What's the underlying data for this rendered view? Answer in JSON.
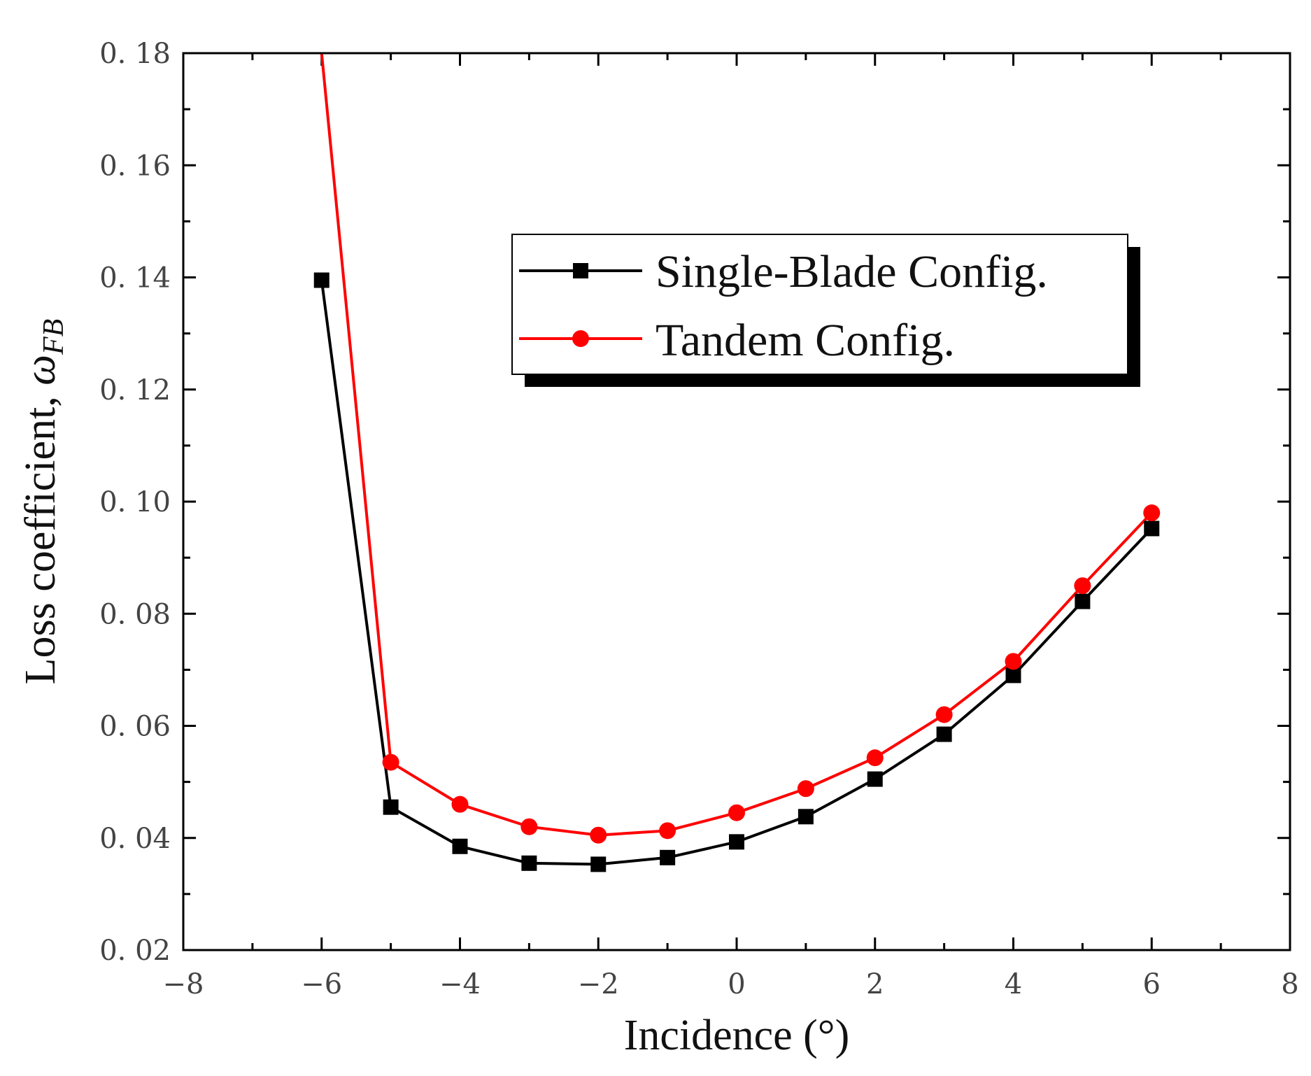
{
  "chart_data": {
    "type": "line",
    "title": "",
    "xlabel": "Incidence (°)",
    "ylabel": "Loss coefficient, ",
    "ylabel_symbol": "ω",
    "ylabel_subscript": "FB",
    "xlim": [
      -8,
      8
    ],
    "ylim": [
      0.02,
      0.18
    ],
    "x_ticks": [
      -8,
      -6,
      -4,
      -2,
      0,
      2,
      4,
      6,
      8
    ],
    "x_tick_labels": [
      "−8",
      "−6",
      "−4",
      "−2",
      "0",
      "2",
      "4",
      "6",
      "8"
    ],
    "y_ticks": [
      0.02,
      0.04,
      0.06,
      0.08,
      0.1,
      0.12,
      0.14,
      0.16,
      0.18
    ],
    "y_tick_labels": [
      "0. 02",
      "0. 04",
      "0. 06",
      "0. 08",
      "0. 10",
      "0. 12",
      "0. 14",
      "0. 16",
      "0. 18"
    ],
    "grid": false,
    "legend_position": "upper-right",
    "x": [
      -6,
      -5,
      -4,
      -3,
      -2,
      -1,
      0,
      1,
      2,
      3,
      4,
      5,
      6
    ],
    "series": [
      {
        "name": "Single-Blade Config.",
        "color": "#000000",
        "marker": "square",
        "values": [
          0.1395,
          0.0455,
          0.0385,
          0.0355,
          0.0353,
          0.0365,
          0.0393,
          0.0438,
          0.0505,
          0.0585,
          0.069,
          0.0822,
          0.0952
        ]
      },
      {
        "name": "Tandem Config.",
        "color": "#ff0000",
        "marker": "circle",
        "start_point": [
          -6,
          0.18
        ],
        "values": [
          0.18,
          0.0535,
          0.046,
          0.042,
          0.0405,
          0.0413,
          0.0445,
          0.0488,
          0.0543,
          0.062,
          0.0715,
          0.085,
          0.098
        ]
      }
    ]
  }
}
